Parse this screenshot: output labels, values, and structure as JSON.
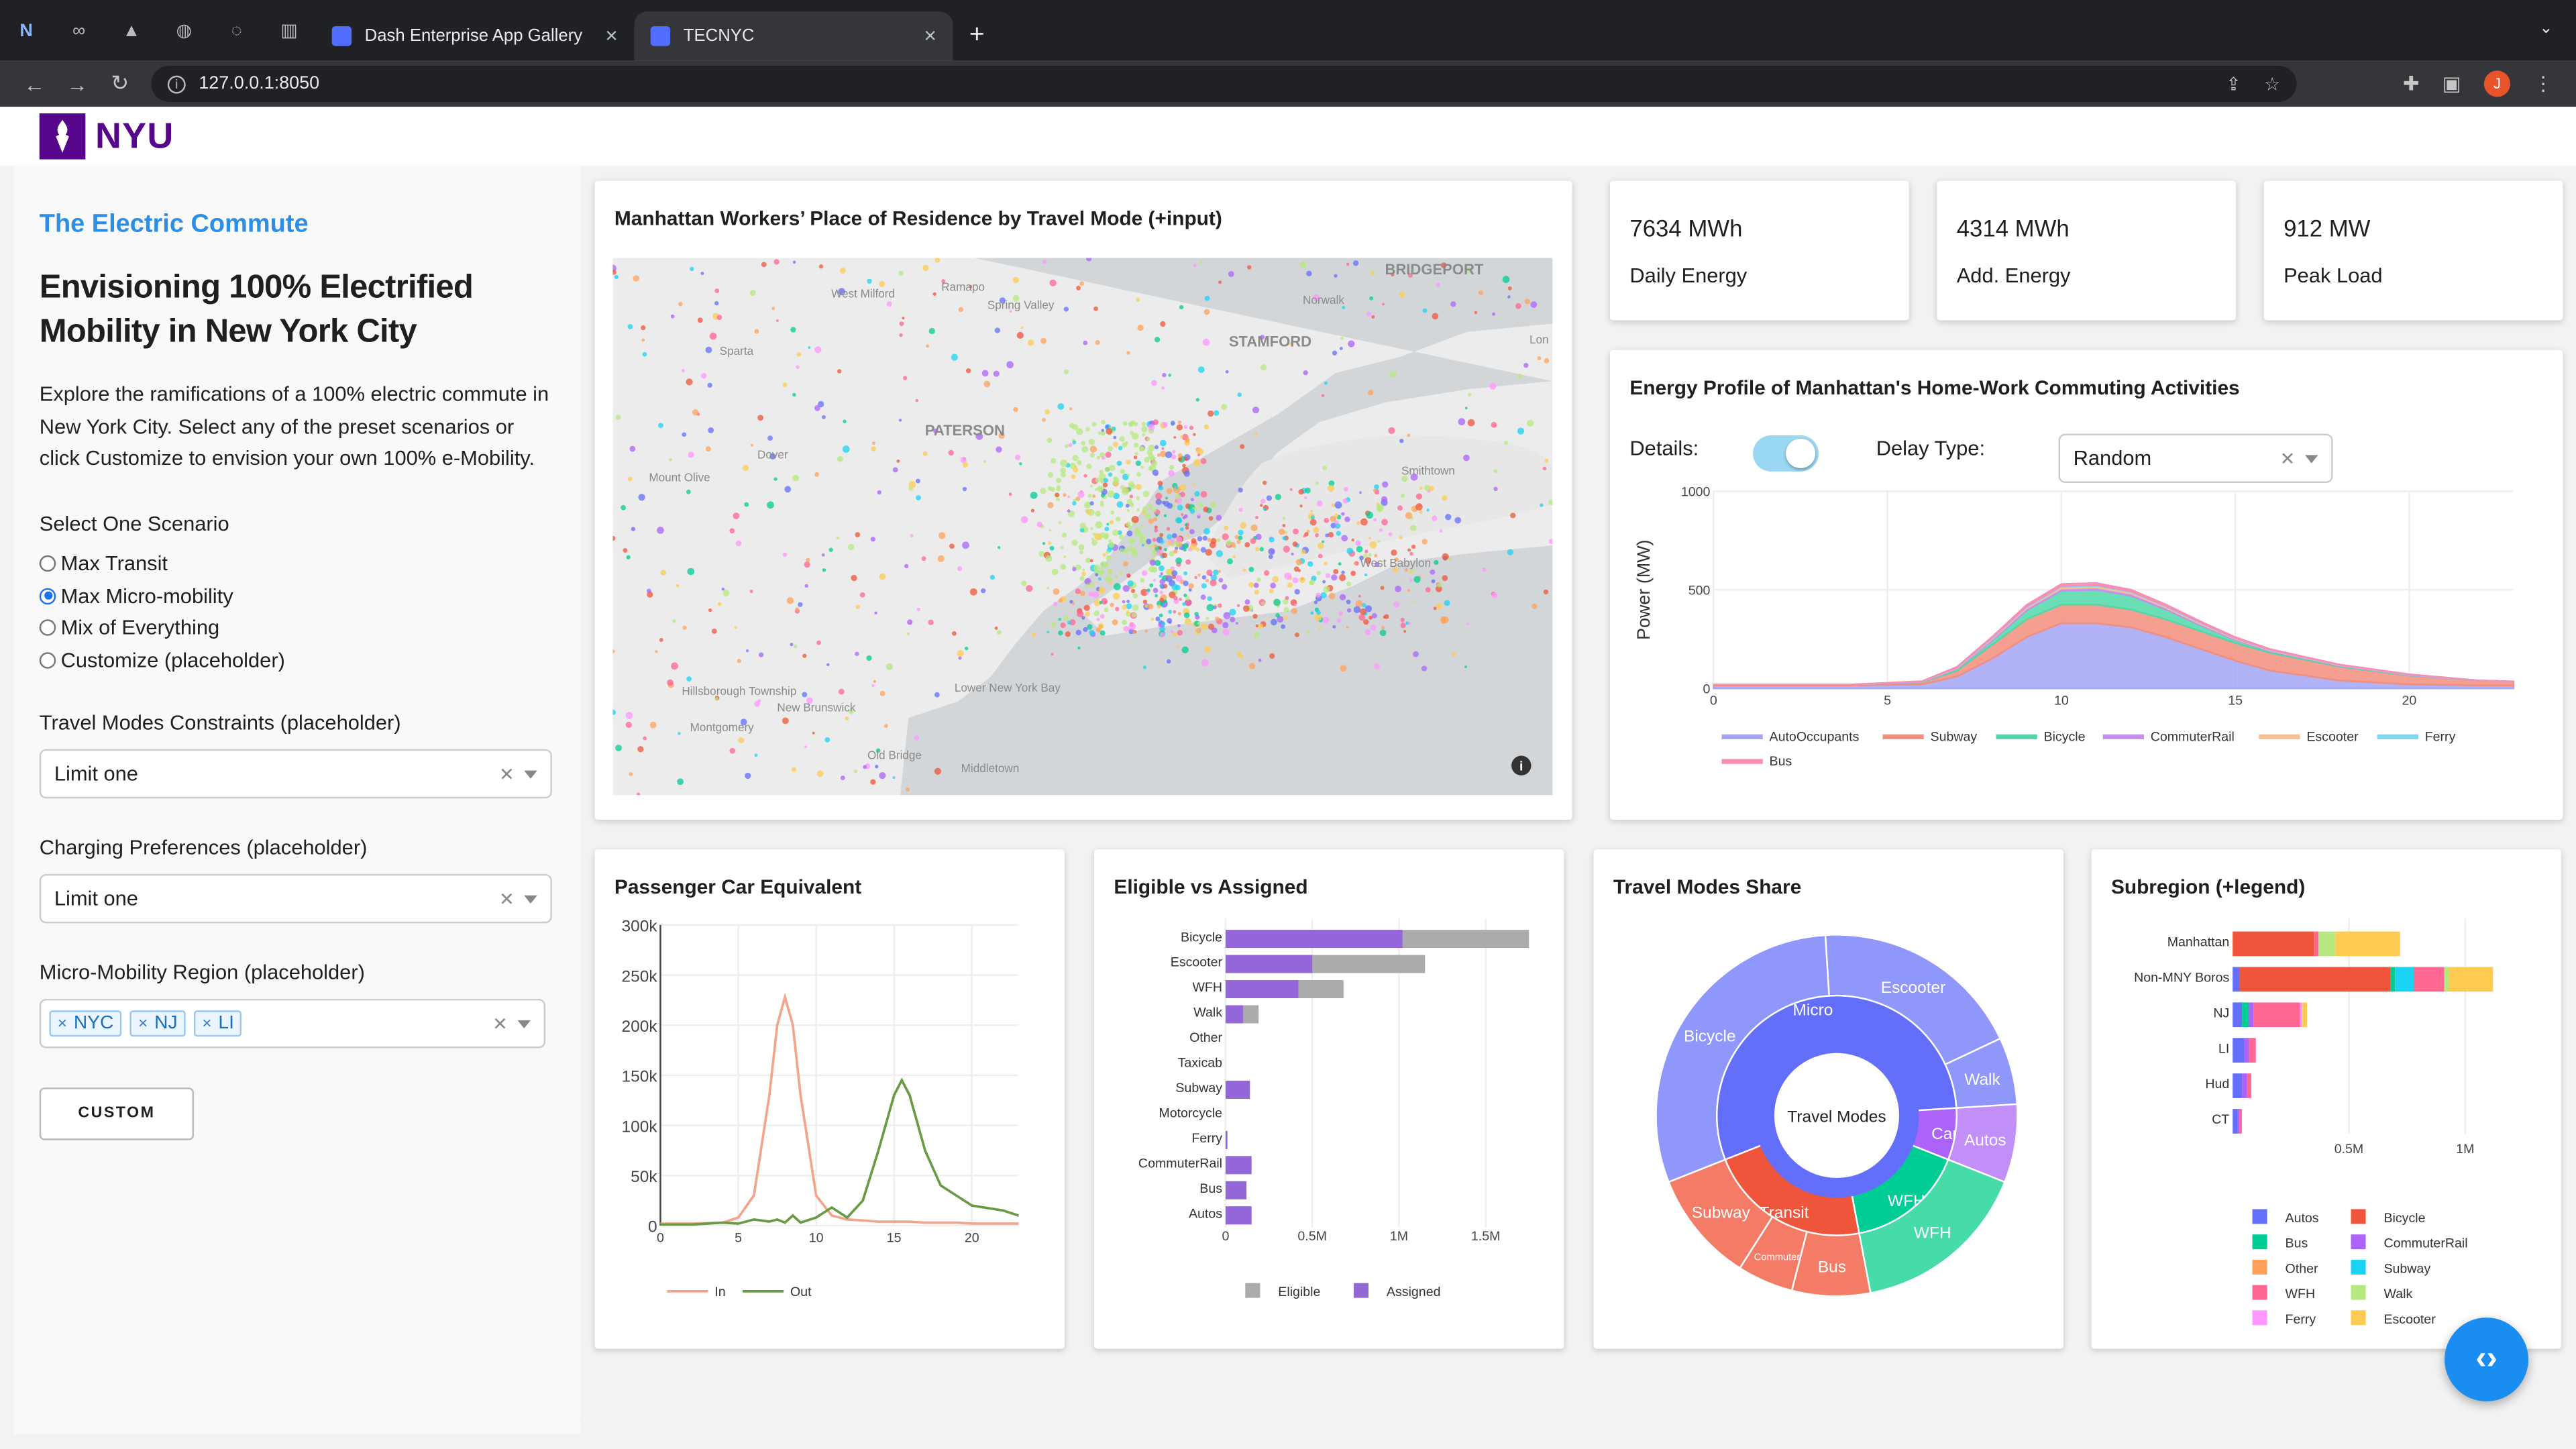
{
  "browser": {
    "tabs": [
      {
        "label": "Dash Enterprise App Gallery"
      },
      {
        "label": "TECNYC"
      }
    ],
    "url": "127.0.0.1:8050",
    "avatar_letter": "J"
  },
  "header": {
    "logo_text": "NYU"
  },
  "sidebar": {
    "brand": "The Electric Commute",
    "headline": "Envisioning 100% Electrified Mobility in New York City",
    "description": "Explore the ramifications of a 100% electric commute in New York City. Select any of the preset scenarios or click Customize to envision your own 100% e-Mobility.",
    "scenario_label": "Select One Scenario",
    "scenarios": [
      "Max Transit",
      "Max Micro-mobility",
      "Mix of Everything",
      "Customize (placeholder)"
    ],
    "selected_scenario": "Max Micro-mobility",
    "travel_modes_label": "Travel Modes Constraints (placeholder)",
    "travel_modes_value": "Limit one",
    "charging_label": "Charging Preferences (placeholder)",
    "charging_value": "Limit one",
    "region_label": "Micro-Mobility Region (placeholder)",
    "region_chips": [
      "NYC",
      "NJ",
      "LI"
    ],
    "custom_button": "CUSTOM"
  },
  "map_card": {
    "title": "Manhattan Workers’ Place of Residence by Travel Mode (+input)",
    "place_labels": [
      "BRIDGEPORT",
      "West Milford",
      "Ramapo",
      "Spring Valley",
      "Norwalk",
      "STAMFORD",
      "Sparta",
      "PATERSON",
      "Dover",
      "Mount Olive",
      "Smithtown",
      "West Babylon",
      "Hillsborough Township",
      "New Brunswick",
      "Montgomery",
      "Old Bridge",
      "Middletown",
      "Lower New York Bay",
      "Lon"
    ]
  },
  "kpis": [
    {
      "value": "7634 MWh",
      "label": "Daily Energy"
    },
    {
      "value": "4314 MWh",
      "label": "Add. Energy"
    },
    {
      "value": "912 MW",
      "label": "Peak Load"
    }
  ],
  "energy_profile": {
    "title": "Energy Profile of Manhattan's Home-Work Commuting Activities",
    "details_label": "Details:",
    "details_on": true,
    "delay_label": "Delay Type:",
    "delay_value": "Random",
    "ylabel": "Power (MW)"
  },
  "chart_data": [
    {
      "type": "area",
      "title": "Energy Profile of Manhattan's Home-Work Commuting Activities",
      "ylabel": "Power (MW)",
      "ylim": [
        0,
        1000
      ],
      "yticks": [
        0,
        500,
        1000
      ],
      "xticks": [
        0,
        5,
        10,
        15,
        20
      ],
      "x": [
        0,
        2,
        4,
        6,
        7,
        8,
        9,
        10,
        11,
        12,
        13,
        14,
        15,
        16,
        18,
        20,
        22,
        23
      ],
      "series": [
        {
          "name": "AutoOccupants",
          "color": "#a4a6f4",
          "values": [
            15,
            15,
            15,
            20,
            60,
            150,
            260,
            330,
            330,
            310,
            260,
            200,
            140,
            90,
            40,
            20,
            15,
            15
          ]
        },
        {
          "name": "Subway",
          "color": "#f28e7d",
          "values": [
            5,
            5,
            5,
            10,
            30,
            70,
            90,
            95,
            95,
            90,
            90,
            90,
            90,
            90,
            70,
            45,
            25,
            20
          ]
        },
        {
          "name": "Bicycle",
          "color": "#50d8a8",
          "values": [
            0,
            0,
            0,
            2,
            8,
            20,
            45,
            70,
            75,
            70,
            50,
            30,
            15,
            8,
            4,
            2,
            0,
            0
          ]
        },
        {
          "name": "CommuterRail",
          "color": "#c88df0",
          "values": [
            0,
            0,
            0,
            2,
            4,
            8,
            10,
            12,
            12,
            11,
            9,
            7,
            5,
            4,
            3,
            2,
            0,
            0
          ]
        },
        {
          "name": "Escooter",
          "color": "#f8c08e",
          "values": [
            0,
            0,
            0,
            1,
            2,
            4,
            6,
            8,
            8,
            7,
            6,
            4,
            3,
            2,
            1,
            1,
            0,
            0
          ]
        },
        {
          "name": "Ferry",
          "color": "#7fd8f0",
          "values": [
            0,
            0,
            0,
            1,
            2,
            3,
            4,
            4,
            4,
            4,
            3,
            3,
            2,
            2,
            1,
            1,
            0,
            0
          ]
        },
        {
          "name": "Bus",
          "color": "#f78eb6",
          "values": [
            0,
            0,
            0,
            1,
            3,
            5,
            8,
            10,
            10,
            9,
            8,
            6,
            5,
            3,
            2,
            1,
            0,
            0
          ]
        }
      ]
    },
    {
      "type": "line",
      "title": "Passenger Car Equivalent",
      "ylim": [
        0,
        300000
      ],
      "yticks": [
        "0",
        "50k",
        "100k",
        "150k",
        "200k",
        "250k",
        "300k"
      ],
      "xticks": [
        0,
        5,
        10,
        15,
        20
      ],
      "x": [
        0,
        2,
        4,
        5,
        6,
        7,
        7.5,
        8,
        8.5,
        9,
        10,
        11,
        12,
        13,
        14,
        15,
        15.5,
        16,
        17,
        18,
        19,
        20,
        22,
        23
      ],
      "series": [
        {
          "name": "In",
          "color": "#f2a48c",
          "values": [
            2000,
            2000,
            3000,
            8000,
            30000,
            130000,
            200000,
            228000,
            200000,
            130000,
            30000,
            10000,
            6000,
            5000,
            4000,
            4000,
            4000,
            4000,
            3000,
            3000,
            3000,
            2000,
            2000,
            2000
          ]
        },
        {
          "name": "Out",
          "color": "#6a9a45",
          "values": [
            1000,
            1000,
            3000,
            2000,
            6000,
            4000,
            6000,
            3000,
            10000,
            3000,
            8000,
            18000,
            8000,
            25000,
            75000,
            130000,
            145000,
            130000,
            75000,
            40000,
            30000,
            20000,
            15000,
            10000
          ]
        }
      ]
    },
    {
      "type": "bar",
      "title": "Eligible vs Assigned",
      "orientation": "h",
      "categories": [
        "Bicycle",
        "Escooter",
        "WFH",
        "Walk",
        "Other",
        "Taxicab",
        "Subway",
        "Motorcycle",
        "Ferry",
        "CommuterRail",
        "Bus",
        "Autos"
      ],
      "xticks": [
        "0",
        "0.5M",
        "1M",
        "1.5M"
      ],
      "xlim": [
        0,
        1800000
      ],
      "series": [
        {
          "name": "Eligible",
          "color": "#ababab",
          "values": [
            1750000,
            1150000,
            680000,
            190000,
            0,
            0,
            140000,
            0,
            10000,
            150000,
            120000,
            150000
          ]
        },
        {
          "name": "Assigned",
          "color": "#9467d8",
          "values": [
            1020000,
            500000,
            420000,
            100000,
            0,
            0,
            140000,
            0,
            10000,
            150000,
            120000,
            150000
          ]
        }
      ]
    },
    {
      "type": "sunburst",
      "title": "Travel Modes Share",
      "center": "Travel Modes",
      "inner": [
        {
          "label": "Micro",
          "value": 55,
          "color": "#636efa"
        },
        {
          "label": "Car",
          "value": 7,
          "color": "#ab63fa"
        },
        {
          "label": "WFH",
          "value": 16,
          "color": "#00cc96"
        },
        {
          "label": "Transit",
          "value": 22,
          "color": "#ef553b"
        }
      ],
      "outer": [
        {
          "label": "Bicycle",
          "value": 30,
          "color": "#8f98fa"
        },
        {
          "label": "Escooter",
          "value": 19,
          "color": "#8f98fa"
        },
        {
          "label": "Walk",
          "value": 6,
          "color": "#8f98fa"
        },
        {
          "label": "Autos",
          "value": 7,
          "color": "#c28ef8"
        },
        {
          "label": "WFH",
          "value": 16,
          "color": "#46dba9"
        },
        {
          "label": "Bus",
          "value": 7,
          "color": "#f47c66"
        },
        {
          "label": "Commuter",
          "value": 5,
          "color": "#f47c66"
        },
        {
          "label": "Subway",
          "value": 10,
          "color": "#f47c66"
        }
      ]
    },
    {
      "type": "bar",
      "title": "Subregion (+legend)",
      "orientation": "h",
      "stacked": true,
      "categories": [
        "Manhattan",
        "Non-MNY Boros",
        "NJ",
        "LI",
        "Hud",
        "CT"
      ],
      "xticks": [
        "0.5M",
        "1M"
      ],
      "xlim": [
        0,
        1300000
      ],
      "series": [
        {
          "name": "Autos",
          "color": "#636efa",
          "values": [
            0,
            30000,
            40000,
            50000,
            40000,
            20000
          ]
        },
        {
          "name": "Bicycle",
          "color": "#ef553b",
          "values": [
            350000,
            650000,
            0,
            0,
            0,
            0
          ]
        },
        {
          "name": "Bus",
          "color": "#00cc96",
          "values": [
            0,
            20000,
            30000,
            0,
            0,
            0
          ]
        },
        {
          "name": "CommuterRail",
          "color": "#ab63fa",
          "values": [
            0,
            0,
            20000,
            20000,
            20000,
            10000
          ]
        },
        {
          "name": "Other",
          "color": "#ffa15a",
          "values": [
            0,
            0,
            0,
            0,
            0,
            0
          ]
        },
        {
          "name": "Subway",
          "color": "#19d3f3",
          "values": [
            0,
            80000,
            0,
            0,
            0,
            0
          ]
        },
        {
          "name": "WFH",
          "color": "#ff6692",
          "values": [
            20000,
            130000,
            200000,
            30000,
            20000,
            10000
          ]
        },
        {
          "name": "Walk",
          "color": "#b6e880",
          "values": [
            70000,
            20000,
            0,
            0,
            0,
            0
          ]
        },
        {
          "name": "Ferry",
          "color": "#ff97ff",
          "values": [
            0,
            0,
            10000,
            0,
            0,
            0
          ]
        },
        {
          "name": "Escooter",
          "color": "#fecb52",
          "values": [
            280000,
            190000,
            20000,
            0,
            0,
            0
          ]
        }
      ]
    }
  ]
}
